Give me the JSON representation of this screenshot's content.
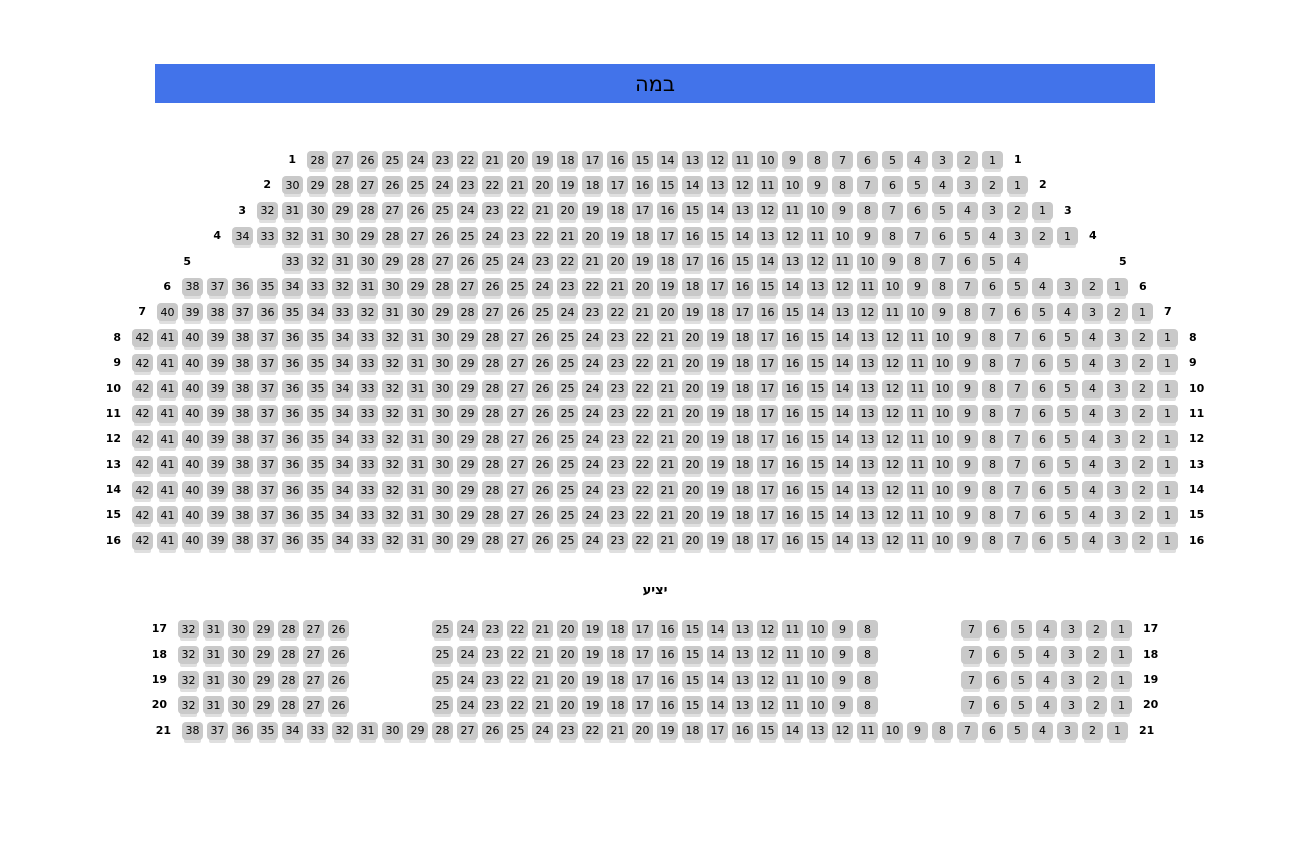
{
  "stage": {
    "label": "במה",
    "color": "#4273ea"
  },
  "seat_style": {
    "fill": "#c9c9c9",
    "tab": "#dfdfdf",
    "number_color": "#000000"
  },
  "sections": {
    "main": {
      "rows": [
        {
          "row": "1",
          "blocks": [
            {
              "from": 28,
              "to": 1
            }
          ]
        },
        {
          "row": "2",
          "blocks": [
            {
              "from": 30,
              "to": 1
            }
          ]
        },
        {
          "row": "3",
          "blocks": [
            {
              "from": 32,
              "to": 1
            }
          ]
        },
        {
          "row": "4",
          "blocks": [
            {
              "from": 34,
              "to": 1
            }
          ]
        },
        {
          "row": "5",
          "blocks": [
            {
              "from": 33,
              "to": 4
            }
          ]
        },
        {
          "row": "6",
          "blocks": [
            {
              "from": 38,
              "to": 1
            }
          ]
        },
        {
          "row": "7",
          "blocks": [
            {
              "from": 40,
              "to": 1
            }
          ]
        },
        {
          "row": "8",
          "blocks": [
            {
              "from": 42,
              "to": 1
            }
          ]
        },
        {
          "row": "9",
          "blocks": [
            {
              "from": 42,
              "to": 1
            }
          ]
        },
        {
          "row": "10",
          "blocks": [
            {
              "from": 42,
              "to": 1
            }
          ]
        },
        {
          "row": "11",
          "blocks": [
            {
              "from": 42,
              "to": 1
            }
          ]
        },
        {
          "row": "12",
          "blocks": [
            {
              "from": 42,
              "to": 1
            }
          ]
        },
        {
          "row": "13",
          "blocks": [
            {
              "from": 42,
              "to": 1
            }
          ]
        },
        {
          "row": "14",
          "blocks": [
            {
              "from": 42,
              "to": 1
            }
          ]
        },
        {
          "row": "15",
          "blocks": [
            {
              "from": 42,
              "to": 1
            }
          ]
        },
        {
          "row": "16",
          "blocks": [
            {
              "from": 42,
              "to": 1
            }
          ]
        }
      ]
    },
    "balcony": {
      "label": "יציע",
      "rows": [
        {
          "row": "17",
          "blocks": [
            {
              "from": 32,
              "to": 26
            },
            {
              "from": 25,
              "to": 8
            },
            {
              "from": 7,
              "to": 1
            }
          ]
        },
        {
          "row": "18",
          "blocks": [
            {
              "from": 32,
              "to": 26
            },
            {
              "from": 25,
              "to": 8
            },
            {
              "from": 7,
              "to": 1
            }
          ]
        },
        {
          "row": "19",
          "blocks": [
            {
              "from": 32,
              "to": 26
            },
            {
              "from": 25,
              "to": 8
            },
            {
              "from": 7,
              "to": 1
            }
          ]
        },
        {
          "row": "20",
          "blocks": [
            {
              "from": 32,
              "to": 26
            },
            {
              "from": 25,
              "to": 8
            },
            {
              "from": 7,
              "to": 1
            }
          ]
        },
        {
          "row": "21",
          "blocks": [
            {
              "from": 38,
              "to": 1
            }
          ]
        }
      ]
    }
  }
}
